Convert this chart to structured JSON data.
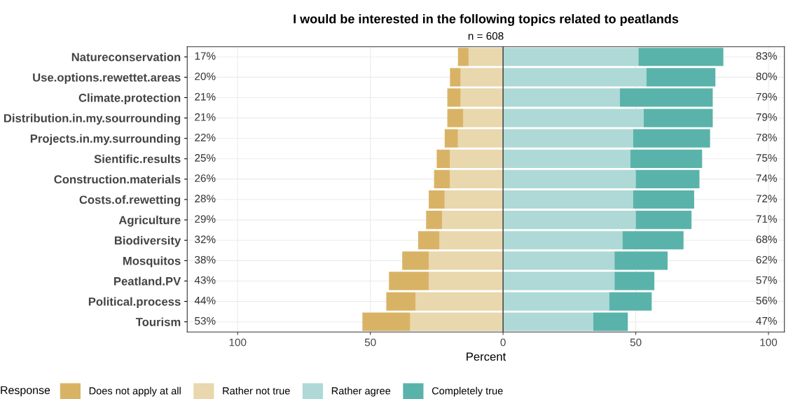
{
  "chart_data": {
    "type": "bar",
    "orientation": "horizontal",
    "stacked": true,
    "title": "I would be interested in the following topics related to peatlands",
    "subtitle": "n = 608",
    "xlabel": "Percent",
    "legend_title": "Response",
    "categories": [
      "Natureconservation",
      "Use.options.rewettet.areas",
      "Climate.protection",
      "Distribution.in.my.sourrounding",
      "Projects.in.my.surrounding",
      "Sientific.results",
      "Construction.materials",
      "Costs.of.rewetting",
      "Agriculture",
      "Biodiversity",
      "Mosquitos",
      "Peatland.PV",
      "Political.process",
      "Tourism"
    ],
    "series": [
      {
        "name": "Rather not true",
        "color": "#e9d7ad",
        "values": [
          -13,
          -16,
          -16,
          -15,
          -17,
          -20,
          -20,
          -22,
          -23,
          -24,
          -28,
          -28,
          -33,
          -35
        ]
      },
      {
        "name": "Does not apply at all",
        "color": "#d9b365",
        "values": [
          -4,
          -4,
          -5,
          -6,
          -5,
          -5,
          -6,
          -6,
          -6,
          -8,
          -10,
          -15,
          -11,
          -18
        ]
      },
      {
        "name": "Rather agree",
        "color": "#aed9d6",
        "values": [
          51,
          54,
          44,
          53,
          49,
          48,
          50,
          49,
          50,
          45,
          42,
          42,
          40,
          34
        ]
      },
      {
        "name": "Completely true",
        "color": "#5ab3aa",
        "values": [
          32,
          26,
          35,
          26,
          29,
          27,
          24,
          23,
          21,
          23,
          20,
          15,
          16,
          13
        ]
      }
    ],
    "totals": [
      [
        "17%",
        "83%"
      ],
      [
        "20%",
        "80%"
      ],
      [
        "21%",
        "79%"
      ],
      [
        "21%",
        "79%"
      ],
      [
        "22%",
        "78%"
      ],
      [
        "25%",
        "75%"
      ],
      [
        "26%",
        "74%"
      ],
      [
        "28%",
        "72%"
      ],
      [
        "29%",
        "71%"
      ],
      [
        "32%",
        "68%"
      ],
      [
        "38%",
        "62%"
      ],
      [
        "43%",
        "57%"
      ],
      [
        "44%",
        "56%"
      ],
      [
        "53%",
        "47%"
      ]
    ],
    "xlim": [
      -119,
      106
    ],
    "xticks": [
      {
        "value": -100,
        "label": "100"
      },
      {
        "value": -50,
        "label": "50"
      },
      0,
      50,
      100
    ],
    "ref_lines": [
      {
        "axis": "x",
        "value": 0,
        "color": "#333333"
      }
    ],
    "grid": true,
    "legend": "bottom"
  }
}
